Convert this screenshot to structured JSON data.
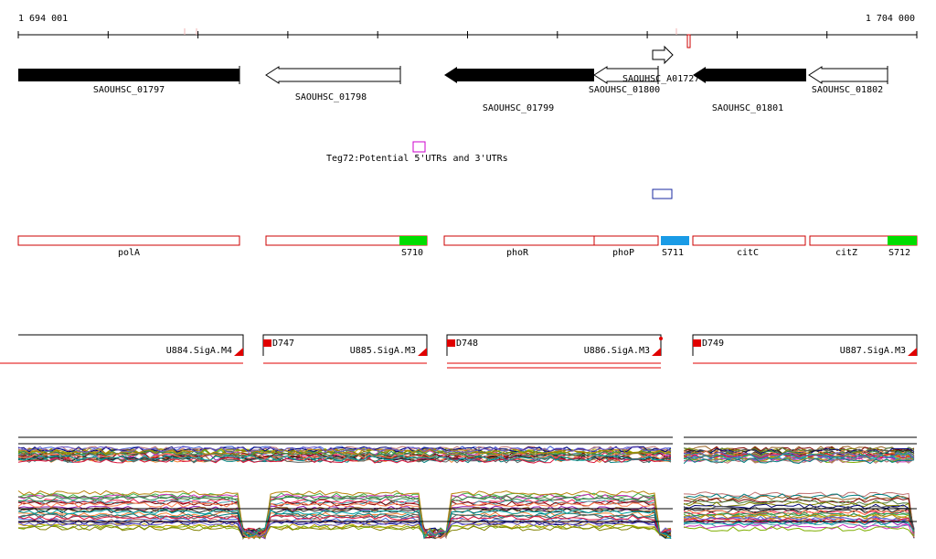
{
  "ruler": {
    "start_label": "1 694 001",
    "end_label": "1 704 000"
  },
  "genes": [
    {
      "label": "SAOUHSC_01797",
      "strand": "+",
      "filled": true
    },
    {
      "label": "SAOUHSC_01798",
      "strand": "-",
      "filled": false
    },
    {
      "label": "SAOUHSC_01799",
      "strand": "-",
      "filled": true
    },
    {
      "label": "SAOUHSC_01800",
      "strand": "-",
      "filled": false
    },
    {
      "label": "SAOUHSC_A01727",
      "strand": "+",
      "filled": false
    },
    {
      "label": "SAOUHSC_01801",
      "strand": "-",
      "filled": true
    },
    {
      "label": "SAOUHSC_01802",
      "strand": "-",
      "filled": false
    }
  ],
  "annotations": {
    "teg_label": "Teg72:Potential 5'UTRs and 3'UTRs"
  },
  "operons": [
    {
      "label": "polA"
    },
    {
      "label": "S710"
    },
    {
      "label": "phoR"
    },
    {
      "label": "phoP"
    },
    {
      "label": "S711"
    },
    {
      "label": "citC"
    },
    {
      "label": "citZ"
    },
    {
      "label": "S712"
    }
  ],
  "transcripts": [
    {
      "label": "U884.SigA.M4"
    },
    {
      "label": "D747"
    },
    {
      "label": "U885.SigA.M3"
    },
    {
      "label": "D748"
    },
    {
      "label": "U886.SigA.M3"
    },
    {
      "label": "D749"
    },
    {
      "label": "U887.SigA.M3"
    }
  ],
  "colors": {
    "gene_fill": "#000000",
    "operon_border": "#cc0000",
    "sigma_green": "#00dd00",
    "sigma_blue": "#1a9be6",
    "teg_box": "#cc00cc",
    "blue_box": "#1a2aa0",
    "transcript_red": "#e00000"
  }
}
